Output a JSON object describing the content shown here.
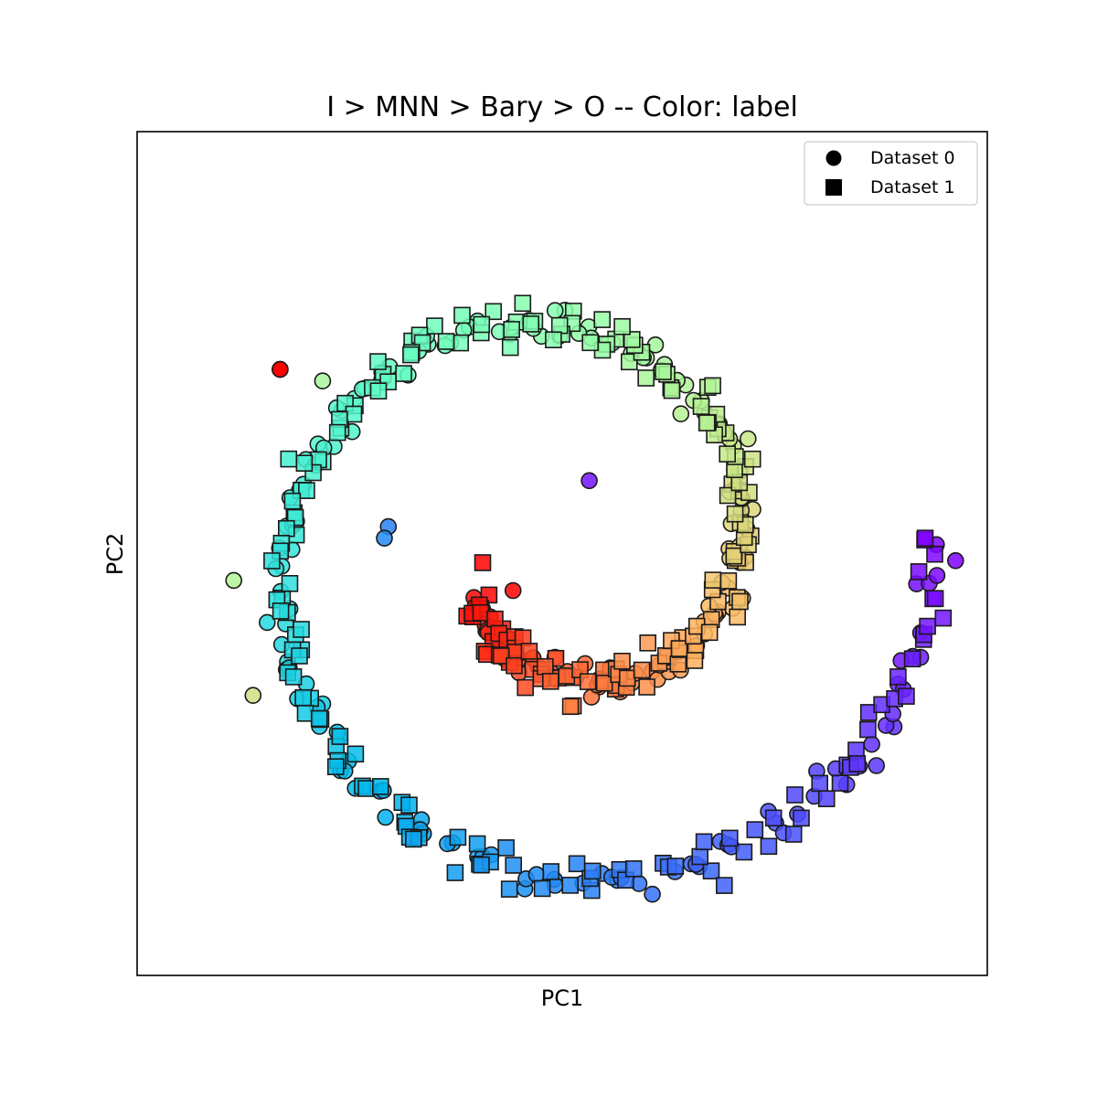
{
  "chart_data": {
    "type": "scatter",
    "title": "I > MNN > Bary > O -- Color: label",
    "xlabel": "PC1",
    "ylabel": "PC2",
    "xlim": [
      -1.1,
      1.1
    ],
    "ylim": [
      -1.1,
      1.1
    ],
    "xticks": [],
    "yticks": [],
    "grid": false,
    "legend_position": "top-right",
    "colormap": "rainbow",
    "color_by": "label",
    "spiral": {
      "theta_start": 3.6,
      "theta_end": 12.6,
      "radius_start": 0.69,
      "radius_end": 1.03,
      "center": [
        0.0,
        0.0
      ],
      "noise": 0.022
    },
    "series": [
      {
        "name": "Dataset 0",
        "marker": "circle",
        "visible_points": [
          {
            "x": -0.73,
            "y": 0.48,
            "label_frac": 1.0
          },
          {
            "x": -0.45,
            "y": 0.07,
            "label_frac": 0.17
          },
          {
            "x": -0.46,
            "y": 0.04,
            "label_frac": 0.18
          },
          {
            "x": 0.07,
            "y": 0.19,
            "label_frac": 0.02
          },
          {
            "x": -0.62,
            "y": 0.45,
            "label_frac": 0.58
          },
          {
            "x": -0.85,
            "y": -0.07,
            "label_frac": 0.6
          },
          {
            "x": -0.8,
            "y": -0.37,
            "label_frac": 0.66
          }
        ]
      },
      {
        "name": "Dataset 1",
        "marker": "square",
        "points_per_series": 260
      }
    ]
  },
  "legend": {
    "items": [
      {
        "label": "Dataset 0",
        "marker": "circle"
      },
      {
        "label": "Dataset 1",
        "marker": "square"
      }
    ]
  },
  "colors": {
    "marker_edge": "#1a1a1a",
    "frame": "#000000"
  }
}
